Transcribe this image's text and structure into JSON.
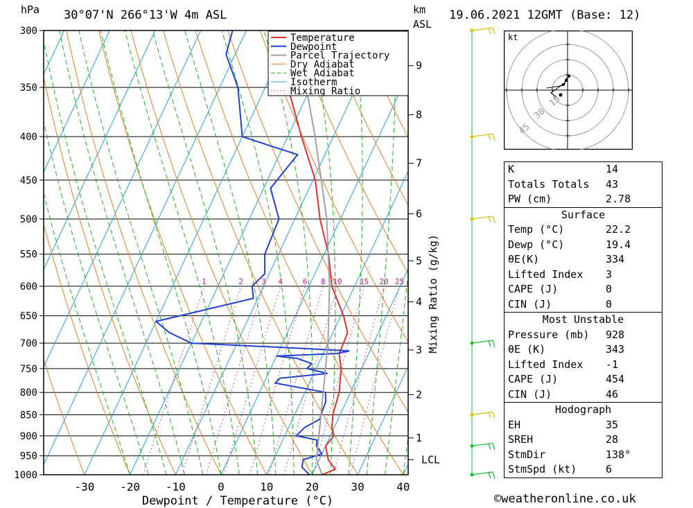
{
  "header": {
    "pressure_unit": "hPa",
    "location": "30°07'N  266°13'W  4m  ASL",
    "km_unit": "km",
    "asl_unit": "ASL",
    "datetime": "19.06.2021  12GMT  (Base: 12)"
  },
  "chart_data": {
    "type": "line",
    "subtype": "skew-T log-P sounding",
    "xlabel": "Dewpoint / Temperature (°C)",
    "ylabel_right": "Mixing Ratio (g/kg)",
    "x_ticks": [
      -30,
      -20,
      -10,
      0,
      10,
      20,
      30,
      40
    ],
    "pressure_levels": [
      300,
      350,
      400,
      450,
      500,
      550,
      600,
      650,
      700,
      750,
      800,
      850,
      900,
      950,
      1000
    ],
    "height_km_labels": [
      {
        "label": "LCL",
        "p": 960
      },
      {
        "label": "1",
        "p": 905
      },
      {
        "label": "2",
        "p": 805
      },
      {
        "label": "3",
        "p": 713
      },
      {
        "label": "4",
        "p": 626
      },
      {
        "label": "5",
        "p": 560
      },
      {
        "label": "6",
        "p": 493
      },
      {
        "label": "7",
        "p": 430
      },
      {
        "label": "8",
        "p": 377
      },
      {
        "label": "9",
        "p": 330
      }
    ],
    "mixing_ratio_labels": [
      "1",
      "2",
      "3",
      "4",
      "6",
      "8",
      "10",
      "15",
      "20",
      "25"
    ],
    "legend": [
      "Temperature",
      "Dewpoint",
      "Parcel Trajectory",
      "Dry Adiabat",
      "Wet Adiabat",
      "Isotherm",
      "Mixing Ratio"
    ],
    "legend_position": "top-center",
    "colors": {
      "temperature": "#e03030",
      "dewpoint": "#2040d0",
      "parcel": "#a0a0a0",
      "dry_adiabat": "#e08020",
      "wet_adiabat": "#20b020",
      "isotherm": "#20a0e0",
      "mixing_ratio": "#c02080",
      "wind": "#d8c000",
      "wind_low": "#10c030"
    },
    "series": [
      {
        "name": "Temperature",
        "points": [
          [
            1000,
            22.2
          ],
          [
            985,
            24.5
          ],
          [
            960,
            22
          ],
          [
            925,
            20
          ],
          [
            900,
            20.8
          ],
          [
            880,
            19.5
          ],
          [
            850,
            18.4
          ],
          [
            800,
            17.5
          ],
          [
            750,
            15.5
          ],
          [
            720,
            13.5
          ],
          [
            700,
            13.4
          ],
          [
            680,
            13.2
          ],
          [
            650,
            10.6
          ],
          [
            600,
            5
          ],
          [
            550,
            1
          ],
          [
            500,
            -4.5
          ],
          [
            450,
            -9.5
          ],
          [
            400,
            -17
          ],
          [
            350,
            -25
          ],
          [
            300,
            -35
          ]
        ]
      },
      {
        "name": "Dewpoint",
        "points": [
          [
            1000,
            19.4
          ],
          [
            980,
            17
          ],
          [
            960,
            16.5
          ],
          [
            945,
            20
          ],
          [
            925,
            18
          ],
          [
            910,
            17.5
          ],
          [
            900,
            12.5
          ],
          [
            880,
            13.5
          ],
          [
            860,
            16
          ],
          [
            850,
            15.8
          ],
          [
            820,
            15.5
          ],
          [
            800,
            14.5
          ],
          [
            780,
            2.5
          ],
          [
            770,
            3
          ],
          [
            760,
            13
          ],
          [
            750,
            8
          ],
          [
            740,
            8.5
          ],
          [
            730,
            5
          ],
          [
            725,
            0
          ],
          [
            720,
            13
          ],
          [
            715,
            15.5
          ],
          [
            710,
            5
          ],
          [
            700,
            -20
          ],
          [
            680,
            -26
          ],
          [
            660,
            -30
          ],
          [
            620,
            -11
          ],
          [
            600,
            -12.5
          ],
          [
            580,
            -11
          ],
          [
            550,
            -13
          ],
          [
            500,
            -13.5
          ],
          [
            460,
            -18.5
          ],
          [
            420,
            -16
          ],
          [
            400,
            -30
          ],
          [
            350,
            -36
          ],
          [
            320,
            -42
          ],
          [
            300,
            -43
          ]
        ]
      },
      {
        "name": "Parcel Trajectory",
        "points": [
          [
            1000,
            22.2
          ],
          [
            960,
            19.4
          ],
          [
            900,
            17.5
          ],
          [
            800,
            14
          ],
          [
            700,
            10
          ],
          [
            600,
            4.5
          ],
          [
            500,
            -3
          ],
          [
            400,
            -14
          ],
          [
            350,
            -21
          ],
          [
            300,
            -30
          ]
        ]
      }
    ],
    "wind_barbs": [
      {
        "p": 300,
        "color": "yellow"
      },
      {
        "p": 400,
        "color": "yellow"
      },
      {
        "p": 500,
        "color": "yellow"
      },
      {
        "p": 700,
        "color": "green"
      },
      {
        "p": 850,
        "color": "yellow"
      },
      {
        "p": 925,
        "color": "green"
      },
      {
        "p": 1000,
        "color": "green"
      }
    ],
    "hodograph": {
      "unit": "kt",
      "ring_labels": [
        "15",
        "30",
        "45"
      ]
    }
  },
  "indices": [
    {
      "k": "K",
      "v": "14"
    },
    {
      "k": "Totals Totals",
      "v": "43"
    },
    {
      "k": "PW (cm)",
      "v": "2.78"
    }
  ],
  "surface": {
    "title": "Surface",
    "rows": [
      {
        "k": "Temp (°C)",
        "v": "22.2"
      },
      {
        "k": "Dewp (°C)",
        "v": "19.4"
      },
      {
        "k": "θE(K)",
        "v": "334"
      },
      {
        "k": "Lifted Index",
        "v": "3"
      },
      {
        "k": "CAPE (J)",
        "v": "0"
      },
      {
        "k": "CIN (J)",
        "v": "0"
      }
    ]
  },
  "most_unstable": {
    "title": "Most Unstable",
    "rows": [
      {
        "k": "Pressure (mb)",
        "v": "928"
      },
      {
        "k": "θE (K)",
        "v": "343"
      },
      {
        "k": "Lifted Index",
        "v": "-1"
      },
      {
        "k": "CAPE (J)",
        "v": "454"
      },
      {
        "k": "CIN (J)",
        "v": "46"
      }
    ]
  },
  "hodograph_table": {
    "title": "Hodograph",
    "rows": [
      {
        "k": "EH",
        "v": "35"
      },
      {
        "k": "SREH",
        "v": "28"
      },
      {
        "k": "StmDir",
        "v": "138°"
      },
      {
        "k": "StmSpd (kt)",
        "v": "6"
      }
    ]
  },
  "footer": "©weatheronline.co.uk"
}
